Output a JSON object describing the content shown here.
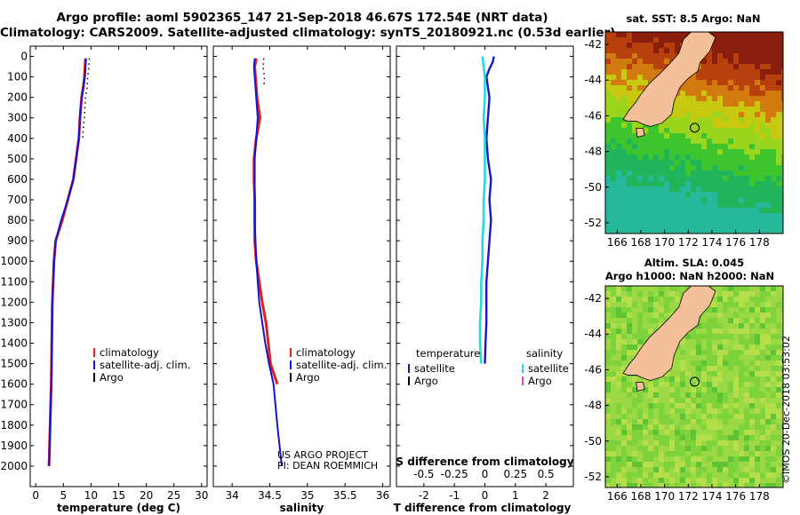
{
  "titles": {
    "line1": "Argo profile: aoml 5902365_147 21-Sep-2018 46.67S 172.54E (NRT data)",
    "line2": "Climatology: CARS2009. Satellite-adjusted climatology: synTS_20180921.nc (0.53d earlier)"
  },
  "colors": {
    "climatology": "#e0201a",
    "satellite": "#1414d2",
    "argo": "#000000",
    "sal_satellite": "#28d8e0",
    "sal_argo": "#e040e0"
  },
  "depth_axis": {
    "ticks": [
      0,
      100,
      200,
      300,
      400,
      500,
      600,
      700,
      800,
      900,
      1000,
      1100,
      1200,
      1300,
      1400,
      1500,
      1600,
      1700,
      1800,
      1900,
      2000
    ],
    "labels": [
      "0",
      "100",
      "200",
      "300",
      "400",
      "500",
      "600",
      "700",
      "800",
      "900",
      "1000",
      "1100",
      "1200",
      "1300",
      "1400",
      "1500",
      "1600",
      "1700",
      "1800",
      "1900",
      "2000"
    ]
  },
  "chart_data": [
    {
      "type": "line",
      "id": "temperature",
      "xlabel": "temperature (deg C)",
      "ylabel": "depth",
      "xlim": [
        -1,
        31
      ],
      "ylim": [
        2100,
        -50
      ],
      "xticks": [
        0,
        5,
        10,
        15,
        20,
        25,
        30
      ],
      "xtick_labels": [
        "0",
        "5",
        "10",
        "15",
        "20",
        "25",
        "30"
      ],
      "legend": [
        "climatology",
        "satellite-adj. clim.",
        "Argo"
      ],
      "series": [
        {
          "name": "climatology",
          "depth": [
            10,
            50,
            100,
            150,
            200,
            300,
            400,
            500,
            600,
            700,
            800,
            900,
            1000,
            1200,
            1400,
            1600,
            1800,
            2000
          ],
          "values": [
            9.0,
            8.9,
            8.8,
            8.6,
            8.3,
            8.0,
            7.8,
            7.3,
            6.8,
            5.8,
            4.8,
            3.6,
            3.3,
            3.0,
            2.9,
            2.8,
            2.6,
            2.4
          ]
        },
        {
          "name": "satellite-adj. clim.",
          "depth": [
            10,
            50,
            100,
            150,
            200,
            300,
            400,
            500,
            600,
            700,
            800,
            900,
            1000,
            1200,
            1400,
            1600,
            1800,
            2000
          ],
          "values": [
            9.1,
            9.0,
            8.9,
            8.6,
            8.3,
            8.0,
            7.8,
            7.3,
            6.8,
            5.8,
            4.6,
            3.6,
            3.3,
            3.0,
            2.9,
            2.8,
            2.6,
            2.4
          ]
        },
        {
          "name": "Argo",
          "depth": [
            10,
            50,
            100,
            150,
            200,
            250,
            300,
            350,
            400
          ],
          "values": [
            9.7,
            9.6,
            9.4,
            9.3,
            9.0,
            8.9,
            8.8,
            8.6,
            8.5
          ]
        }
      ]
    },
    {
      "type": "line",
      "id": "salinity",
      "xlabel": "salinity",
      "ylabel": "depth",
      "xlim": [
        33.75,
        36.1
      ],
      "ylim": [
        2100,
        -50
      ],
      "xticks": [
        34,
        34.5,
        35,
        35.5,
        36
      ],
      "xtick_labels": [
        "34",
        "34.5",
        "35",
        "35.5",
        "36"
      ],
      "legend": [
        "climatology",
        "satellite-adj. clim.",
        "Argo"
      ],
      "credit": [
        "US ARGO PROJECT",
        "PI: DEAN ROEMMICH"
      ],
      "series": [
        {
          "name": "climatology",
          "depth": [
            10,
            50,
            100,
            200,
            300,
            400,
            500,
            600,
            700,
            800,
            900,
            1000,
            1100,
            1200,
            1300,
            1400,
            1500,
            1600
          ],
          "values": [
            34.32,
            34.3,
            34.31,
            34.33,
            34.37,
            34.32,
            34.29,
            34.29,
            34.3,
            34.3,
            34.3,
            34.32,
            34.36,
            34.4,
            34.45,
            34.48,
            34.51,
            34.6
          ]
        },
        {
          "name": "satellite-adj. clim.",
          "depth": [
            10,
            50,
            100,
            200,
            300,
            400,
            500,
            600,
            700,
            800,
            900,
            1000,
            1100,
            1200,
            1300,
            1400,
            1500,
            1600,
            1800,
            2000
          ],
          "values": [
            34.3,
            34.29,
            34.3,
            34.32,
            34.34,
            34.32,
            34.3,
            34.3,
            34.3,
            34.3,
            34.31,
            34.32,
            34.34,
            34.36,
            34.4,
            34.44,
            34.49,
            34.55,
            34.6,
            34.66
          ]
        },
        {
          "name": "Argo",
          "depth": [
            10,
            50,
            100,
            150
          ],
          "values": [
            34.42,
            34.41,
            34.43,
            34.42
          ]
        }
      ]
    },
    {
      "type": "line",
      "id": "difference",
      "xlabel": "T difference from climatology",
      "x2label": "S difference from climatology",
      "xlim": [
        -2.9,
        2.9
      ],
      "ylim": [
        2100,
        -50
      ],
      "xticks": [
        -2,
        -1,
        0,
        1,
        2
      ],
      "xtick_labels": [
        "-2",
        "-1",
        "0",
        "1",
        "2"
      ],
      "x2ticks": [
        -0.5,
        -0.25,
        0,
        0.25,
        0.5
      ],
      "x2tick_labels": [
        "-0.5",
        "-0.25",
        "0",
        "0.25",
        "0.5"
      ],
      "legend_headers": [
        "temperature",
        "salinity"
      ],
      "legend": [
        "satellite",
        "Argo"
      ],
      "series": [
        {
          "name": "temperature satellite",
          "depth": [
            0,
            30,
            60,
            100,
            150,
            200,
            300,
            400,
            500,
            600,
            700,
            800,
            900,
            1000,
            1100,
            1200,
            1300,
            1400,
            1500
          ],
          "values": [
            0.3,
            0.25,
            0.15,
            0.05,
            0.1,
            0.15,
            0.1,
            0.05,
            0.1,
            0.2,
            0.15,
            0.2,
            0.15,
            0.1,
            0.05,
            0.05,
            0.05,
            0.02,
            0.0
          ]
        },
        {
          "name": "salinity satellite",
          "depth": [
            0,
            50,
            100,
            200,
            300,
            400,
            500,
            600,
            700,
            800,
            900,
            1000,
            1100,
            1200,
            1300,
            1400,
            1500
          ],
          "values": [
            -0.02,
            -0.01,
            0.0,
            0.0,
            -0.01,
            0.0,
            0.0,
            0.0,
            -0.01,
            -0.01,
            -0.02,
            -0.02,
            -0.03,
            -0.03,
            -0.04,
            -0.04,
            -0.03
          ]
        }
      ]
    },
    {
      "type": "heatmap",
      "id": "sst-map",
      "title": "sat. SST: 8.5 Argo: NaN",
      "xticks": [
        166,
        168,
        170,
        172,
        174,
        176,
        178
      ],
      "xtick_labels": [
        "166",
        "168",
        "170",
        "172",
        "174",
        "176",
        "178"
      ],
      "yticks": [
        -42,
        -44,
        -46,
        -48,
        -50,
        -52
      ],
      "ytick_labels": [
        "-42",
        "-44",
        "-46",
        "-48",
        "-50",
        "-52"
      ],
      "xlim": [
        165,
        180
      ],
      "ylim": [
        -52.6,
        -41.3
      ],
      "float_position": [
        172.54,
        -46.67
      ]
    },
    {
      "type": "heatmap",
      "id": "sla-map",
      "title": "Altim. SLA: 0.045",
      "subtitle": "Argo h1000: NaN h2000: NaN",
      "xticks": [
        166,
        168,
        170,
        172,
        174,
        176,
        178
      ],
      "xtick_labels": [
        "166",
        "168",
        "170",
        "172",
        "174",
        "176",
        "178"
      ],
      "yticks": [
        -42,
        -44,
        -46,
        -48,
        -50,
        -52
      ],
      "ytick_labels": [
        "-42",
        "-44",
        "-46",
        "-48",
        "-50",
        "-52"
      ],
      "xlim": [
        165,
        180
      ],
      "ylim": [
        -52.6,
        -41.3
      ],
      "float_position": [
        172.54,
        -46.67
      ]
    }
  ],
  "copyright": "©IMOS 20-Dec-2018 03:53:02"
}
